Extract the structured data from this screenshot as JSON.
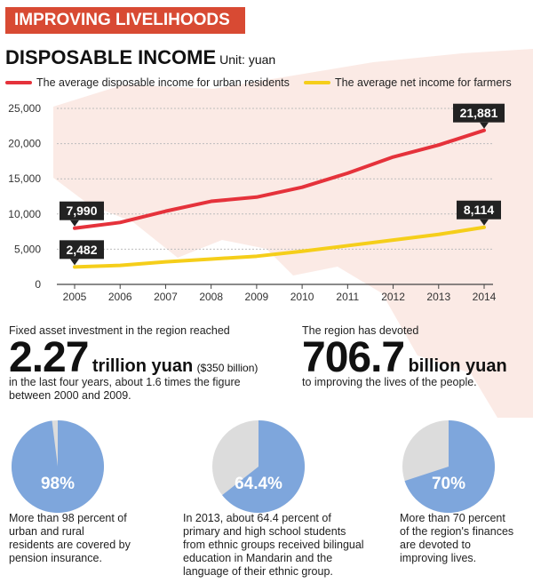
{
  "header": {
    "banner": "IMPROVING LIVELIHOODS",
    "title": "DISPOSABLE INCOME",
    "unit": "Unit: yuan"
  },
  "colors": {
    "urban": "#e5323b",
    "farmers": "#f5ce1a",
    "banner": "#d84a33",
    "pie_main": "#7ea6dc",
    "pie_rest": "#dcdcdc"
  },
  "chart_data": {
    "type": "line",
    "x": [
      "2005",
      "2006",
      "2007",
      "2008",
      "2009",
      "2010",
      "2011",
      "2012",
      "2013",
      "2014"
    ],
    "ylim": [
      0,
      25000
    ],
    "yticks": [
      0,
      5000,
      10000,
      15000,
      20000,
      25000
    ],
    "ytick_labels": [
      "0",
      "5,000",
      "10,000",
      "15,000",
      "20,000",
      "25,000"
    ],
    "series": [
      {
        "name": "The average disposable income for urban residents",
        "values": [
          7990,
          8800,
          10400,
          11800,
          12400,
          13800,
          15800,
          18100,
          19800,
          21881
        ]
      },
      {
        "name": "The average net income for farmers",
        "values": [
          2482,
          2700,
          3200,
          3600,
          4000,
          4700,
          5500,
          6300,
          7100,
          8114
        ]
      }
    ],
    "annotations": [
      {
        "series": 0,
        "index": 0,
        "text": "7,990"
      },
      {
        "series": 0,
        "index": 9,
        "text": "21,881"
      },
      {
        "series": 1,
        "index": 0,
        "text": "2,482"
      },
      {
        "series": 1,
        "index": 9,
        "text": "8,114"
      }
    ]
  },
  "stats": [
    {
      "intro": "Fixed asset investment in the region reached",
      "number": "2.27",
      "unit": "trillion yuan",
      "sub": "($350 billion)",
      "desc": [
        "in the last four years, about 1.6 times the figure",
        "between 2000 and 2009."
      ]
    },
    {
      "intro": "The region has devoted",
      "number": "706.7",
      "unit": "billion yuan",
      "sub": "",
      "desc": [
        "to improving the lives of the people."
      ]
    }
  ],
  "pies": [
    {
      "percent": 98,
      "label": "98%",
      "desc": [
        "More than 98 percent of",
        "urban and rural",
        "residents are covered by",
        "pension insurance."
      ]
    },
    {
      "percent": 64.4,
      "label": "64.4%",
      "desc": [
        "In 2013, about 64.4 percent of",
        "primary and high school students",
        "from ethnic groups received bilingual",
        "education in Mandarin and the",
        "language of their ethnic group."
      ]
    },
    {
      "percent": 70,
      "label": "70%",
      "desc": [
        "More than 70 percent",
        "of the region's finances",
        "are devoted to",
        "improving lives."
      ]
    }
  ]
}
